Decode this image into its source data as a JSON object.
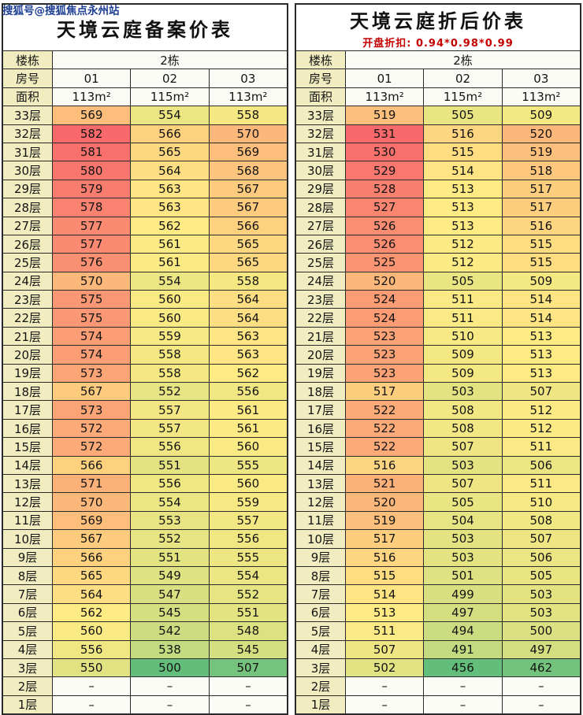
{
  "watermark": "搜狐号@搜狐焦点永州站",
  "colors": {
    "scale_low": "#63BE7B",
    "scale_mid": "#FFEB84",
    "scale_high": "#F8696B",
    "dash_bg": "#fcfcf7",
    "floor_col_bg": "#f1edc0",
    "header_bg": "#fbfbf6",
    "grid_line": "#2b2b2b",
    "watermark_color": "#1d3f94",
    "subtitle_color": "#c40000"
  },
  "chart_data": [
    {
      "type": "heatmap",
      "title": "天境云庭备案价表",
      "header": {
        "building_label": "楼栋",
        "building_value": "2栋",
        "room_label": "房号",
        "rooms": [
          "01",
          "02",
          "03"
        ],
        "area_label": "面积",
        "areas": [
          "113m²",
          "115m²",
          "113m²"
        ]
      },
      "rows": [
        "33层",
        "32层",
        "31层",
        "30层",
        "29层",
        "28层",
        "27层",
        "26层",
        "25层",
        "24层",
        "23层",
        "22层",
        "21层",
        "20层",
        "19层",
        "18层",
        "17层",
        "16层",
        "15层",
        "14层",
        "13层",
        "12层",
        "11层",
        "10层",
        "9层",
        "8层",
        "7层",
        "6层",
        "5层",
        "4层",
        "3层",
        "2层",
        "1层"
      ],
      "values": [
        [
          569,
          554,
          558
        ],
        [
          582,
          566,
          570
        ],
        [
          581,
          565,
          569
        ],
        [
          580,
          564,
          568
        ],
        [
          579,
          563,
          567
        ],
        [
          578,
          563,
          567
        ],
        [
          577,
          562,
          566
        ],
        [
          577,
          561,
          565
        ],
        [
          576,
          561,
          565
        ],
        [
          570,
          554,
          558
        ],
        [
          575,
          560,
          564
        ],
        [
          575,
          560,
          564
        ],
        [
          574,
          559,
          563
        ],
        [
          574,
          558,
          563
        ],
        [
          573,
          558,
          562
        ],
        [
          567,
          552,
          556
        ],
        [
          573,
          557,
          561
        ],
        [
          572,
          557,
          561
        ],
        [
          572,
          556,
          560
        ],
        [
          566,
          551,
          555
        ],
        [
          571,
          556,
          560
        ],
        [
          570,
          554,
          559
        ],
        [
          569,
          553,
          557
        ],
        [
          567,
          552,
          556
        ],
        [
          566,
          551,
          555
        ],
        [
          565,
          549,
          554
        ],
        [
          564,
          547,
          552
        ],
        [
          562,
          545,
          551
        ],
        [
          560,
          542,
          548
        ],
        [
          556,
          538,
          545
        ],
        [
          550,
          500,
          507
        ],
        [
          "–",
          "–",
          "–"
        ],
        [
          "–",
          "–",
          "–"
        ]
      ]
    },
    {
      "type": "heatmap",
      "title": "天境云庭折后价表",
      "subtitle": "开盘折扣: 0.94*0.98*0.99",
      "header": {
        "building_label": "楼栋",
        "building_value": "2栋",
        "room_label": "房号",
        "rooms": [
          "01",
          "02",
          "03"
        ],
        "area_label": "面积",
        "areas": [
          "113m²",
          "115m²",
          "113m²"
        ]
      },
      "rows": [
        "33层",
        "32层",
        "31层",
        "30层",
        "29层",
        "28层",
        "27层",
        "26层",
        "25层",
        "24层",
        "23层",
        "22层",
        "21层",
        "20层",
        "19层",
        "18层",
        "17层",
        "16层",
        "15层",
        "14层",
        "13层",
        "12层",
        "11层",
        "10层",
        "9层",
        "8层",
        "7层",
        "6层",
        "5层",
        "4层",
        "3层",
        "2层",
        "1层"
      ],
      "values": [
        [
          519,
          505,
          509
        ],
        [
          531,
          516,
          520
        ],
        [
          530,
          515,
          519
        ],
        [
          529,
          514,
          518
        ],
        [
          528,
          513,
          517
        ],
        [
          527,
          513,
          517
        ],
        [
          526,
          513,
          516
        ],
        [
          526,
          512,
          515
        ],
        [
          525,
          512,
          515
        ],
        [
          520,
          505,
          509
        ],
        [
          524,
          511,
          514
        ],
        [
          524,
          511,
          514
        ],
        [
          523,
          510,
          513
        ],
        [
          523,
          509,
          513
        ],
        [
          523,
          509,
          513
        ],
        [
          517,
          503,
          507
        ],
        [
          522,
          508,
          512
        ],
        [
          522,
          508,
          512
        ],
        [
          522,
          507,
          511
        ],
        [
          516,
          503,
          506
        ],
        [
          521,
          507,
          511
        ],
        [
          520,
          505,
          510
        ],
        [
          519,
          504,
          508
        ],
        [
          517,
          503,
          507
        ],
        [
          516,
          503,
          506
        ],
        [
          515,
          501,
          505
        ],
        [
          514,
          499,
          503
        ],
        [
          513,
          497,
          503
        ],
        [
          511,
          494,
          500
        ],
        [
          507,
          491,
          497
        ],
        [
          502,
          456,
          462
        ],
        [
          "–",
          "–",
          "–"
        ],
        [
          "–",
          "–",
          "–"
        ]
      ]
    }
  ]
}
